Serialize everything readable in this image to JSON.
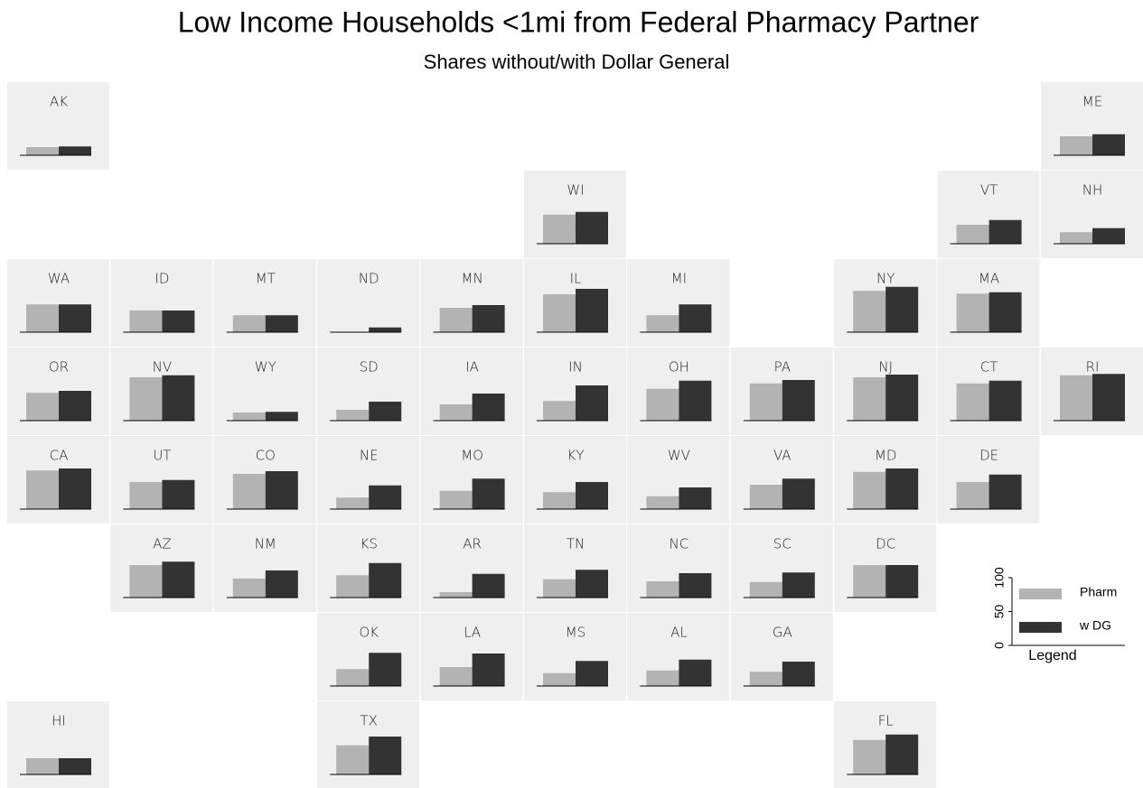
{
  "chart_data": {
    "type": "tile-bar",
    "title": "Low Income Households <1mi from Federal Pharmacy Partner",
    "subtitle": "Shares without/with Dollar General",
    "categories": [
      "AK",
      "ME",
      "WI",
      "VT",
      "NH",
      "WA",
      "ID",
      "MT",
      "ND",
      "MN",
      "IL",
      "MI",
      "NY",
      "MA",
      "OR",
      "NV",
      "WY",
      "SD",
      "IA",
      "IN",
      "OH",
      "PA",
      "NJ",
      "CT",
      "RI",
      "CA",
      "UT",
      "CO",
      "NE",
      "MO",
      "KY",
      "WV",
      "VA",
      "MD",
      "DE",
      "AZ",
      "NM",
      "KS",
      "AR",
      "TN",
      "NC",
      "SC",
      "DC",
      "OK",
      "LA",
      "MS",
      "AL",
      "GA",
      "HI",
      "TX",
      "FL"
    ],
    "series": [
      {
        "name": "Pharm",
        "color": "#b3b3b3",
        "values": [
          12,
          28,
          43,
          28,
          17,
          41,
          32,
          25,
          0,
          36,
          56,
          25,
          61,
          57,
          41,
          64,
          12,
          16,
          24,
          29,
          47,
          55,
          64,
          55,
          67,
          57,
          40,
          52,
          17,
          27,
          25,
          19,
          36,
          55,
          40,
          48,
          28,
          33,
          8,
          27,
          24,
          23,
          48,
          25,
          28,
          19,
          23,
          21,
          24,
          43,
          51
        ]
      },
      {
        "name": "w DG",
        "color": "#333333",
        "values": [
          13,
          31,
          47,
          35,
          23,
          41,
          32,
          25,
          7,
          40,
          64,
          41,
          67,
          59,
          44,
          67,
          13,
          28,
          40,
          52,
          59,
          60,
          68,
          59,
          69,
          60,
          43,
          56,
          35,
          45,
          40,
          32,
          45,
          60,
          51,
          53,
          40,
          51,
          35,
          41,
          36,
          37,
          48,
          49,
          48,
          37,
          39,
          36,
          24,
          56,
          59
        ]
      }
    ],
    "ylim": [
      0,
      100
    ],
    "yticks": [
      0,
      50,
      100
    ],
    "legend_axis_label": "Legend"
  }
}
